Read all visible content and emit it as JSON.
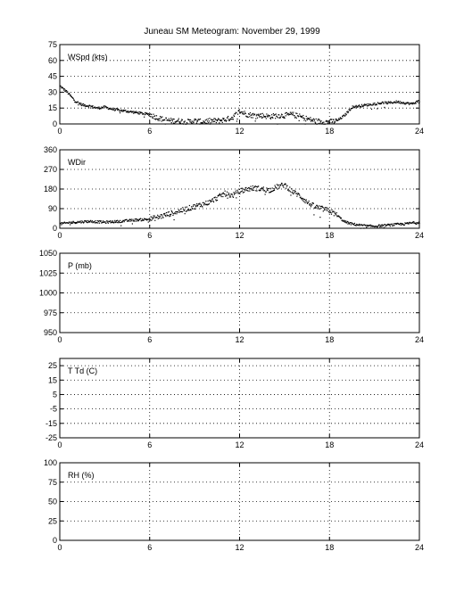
{
  "title": "Juneau SM Meteogram:   November 29, 1999",
  "chart_data": [
    {
      "type": "scatter",
      "label": "WSpd (kts)",
      "xlim": [
        0,
        24
      ],
      "xticks": [
        "0",
        "6",
        "12",
        "18",
        "24"
      ],
      "ylim": [
        0,
        75
      ],
      "yticks": [
        "0",
        "15",
        "30",
        "45",
        "60",
        "75"
      ],
      "grid": true,
      "series": [
        {
          "x": [
            0,
            0.5,
            1,
            1.5,
            2,
            2.5,
            3,
            3.5,
            4,
            4.5,
            5,
            5.5,
            6,
            6.5,
            7,
            7.5,
            8,
            8.5,
            9,
            9.5,
            10,
            10.5,
            11,
            11.5,
            12,
            12.5,
            13,
            13.5,
            14,
            14.5,
            15,
            15.5,
            16,
            16.5,
            17,
            17.5,
            18,
            18.5,
            19,
            19.5,
            20,
            20.5,
            21,
            21.5,
            22,
            22.5,
            23,
            23.5,
            24
          ],
          "y": [
            36,
            30,
            22,
            18,
            17,
            15,
            16,
            14,
            13,
            12,
            11,
            10,
            9,
            6,
            4,
            3,
            3,
            2,
            3,
            2,
            3,
            3,
            4,
            6,
            12,
            9,
            8,
            8,
            7,
            8,
            8,
            9,
            7,
            5,
            3,
            2,
            2,
            3,
            8,
            16,
            17,
            18,
            19,
            20,
            20,
            21,
            20,
            19,
            22
          ]
        }
      ]
    },
    {
      "type": "scatter",
      "label": "WDir",
      "xlim": [
        0,
        24
      ],
      "xticks": [
        "0",
        "6",
        "12",
        "18",
        "24"
      ],
      "ylim": [
        0,
        360
      ],
      "yticks": [
        "0",
        "90",
        "180",
        "270",
        "360"
      ],
      "grid": true,
      "series": [
        {
          "x": [
            0,
            0.5,
            1,
            1.5,
            2,
            2.5,
            3,
            3.5,
            4,
            4.5,
            5,
            5.5,
            6,
            6.5,
            7,
            7.5,
            8,
            8.5,
            9,
            9.5,
            10,
            10.5,
            11,
            11.5,
            12,
            12.5,
            13,
            13.5,
            14,
            14.5,
            15,
            15.5,
            16,
            16.5,
            17,
            17.5,
            18,
            18.5,
            19,
            19.5,
            20,
            20.5,
            21,
            21.5,
            22,
            22.5,
            23,
            23.5,
            24
          ],
          "y": [
            20,
            25,
            28,
            30,
            32,
            30,
            28,
            30,
            32,
            35,
            38,
            40,
            42,
            50,
            60,
            70,
            80,
            90,
            100,
            110,
            120,
            140,
            160,
            150,
            170,
            180,
            185,
            180,
            175,
            190,
            200,
            170,
            150,
            120,
            100,
            90,
            80,
            60,
            30,
            20,
            15,
            10,
            10,
            12,
            15,
            18,
            20,
            25,
            28
          ]
        }
      ]
    },
    {
      "type": "scatter",
      "label": "P (mb)",
      "xlim": [
        0,
        24
      ],
      "xticks": [
        "0",
        "6",
        "12",
        "18",
        "24"
      ],
      "ylim": [
        950,
        1050
      ],
      "yticks": [
        "950",
        "975",
        "1000",
        "1025",
        "1050"
      ],
      "grid": true,
      "series": []
    },
    {
      "type": "scatter",
      "label": "T Td (C)",
      "xlim": [
        0,
        24
      ],
      "xticks": [
        "0",
        "6",
        "12",
        "18",
        "24"
      ],
      "ylim": [
        -25,
        30
      ],
      "yticks": [
        "-25",
        "-15",
        "-5",
        "5",
        "15",
        "25"
      ],
      "grid": true,
      "series": []
    },
    {
      "type": "scatter",
      "label": "RH (%)",
      "xlim": [
        0,
        24
      ],
      "xticks": [
        "0",
        "6",
        "12",
        "18",
        "24"
      ],
      "ylim": [
        0,
        100
      ],
      "yticks": [
        "0",
        "25",
        "50",
        "75",
        "100"
      ],
      "grid": true,
      "series": []
    }
  ]
}
